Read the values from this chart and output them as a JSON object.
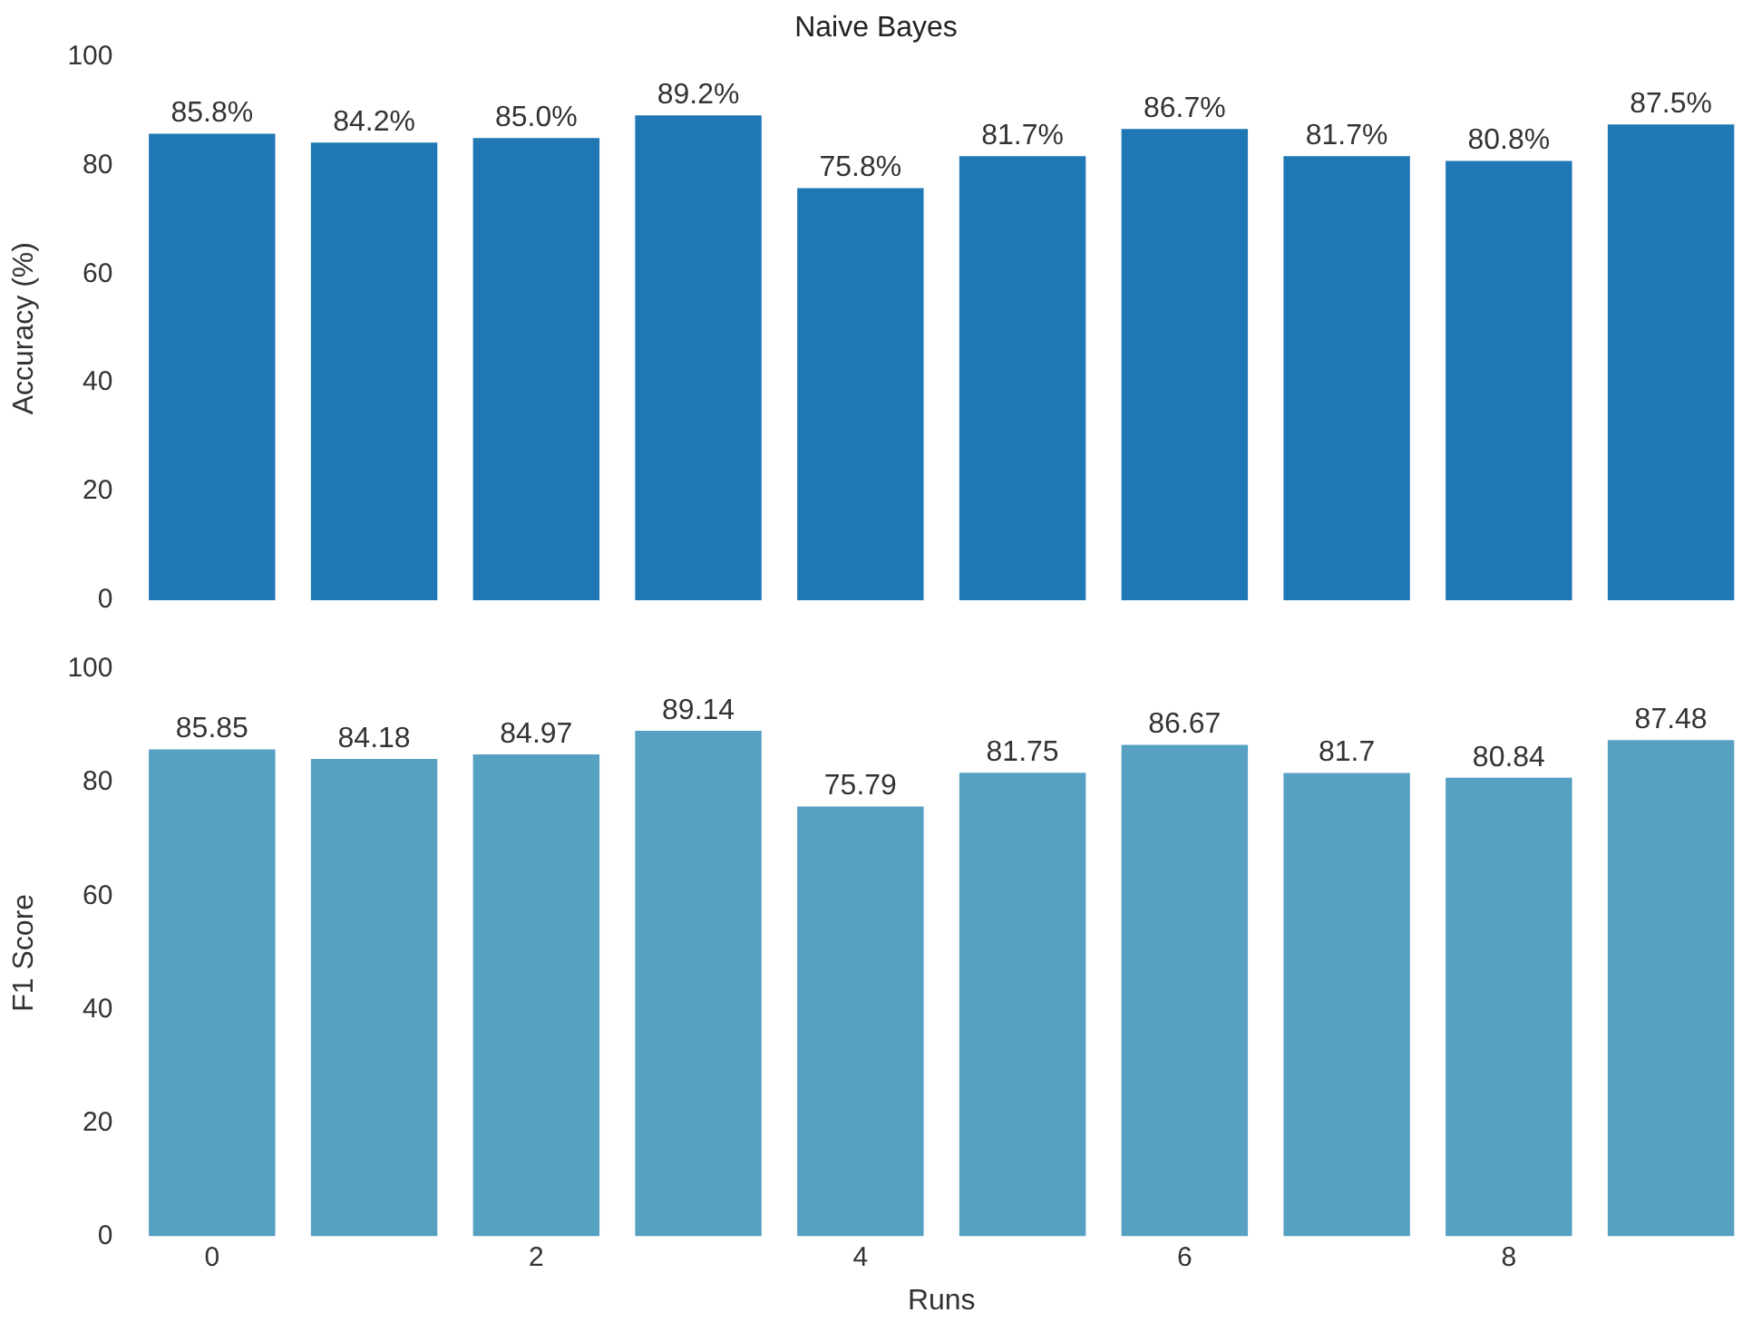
{
  "chart_data": [
    {
      "type": "bar",
      "title": "Naive Bayes",
      "ylabel": "Accuracy (%)",
      "categories": [
        "0",
        null,
        "2",
        null,
        "4",
        null,
        "6",
        null,
        "8",
        null
      ],
      "ylim": [
        0,
        100
      ],
      "yticks": [
        0,
        20,
        40,
        60,
        80,
        100
      ],
      "tick_labels": "y",
      "grid": false,
      "legend": false,
      "color": "#1f77b4",
      "values": [
        85.8,
        84.2,
        85.0,
        89.2,
        75.8,
        81.7,
        86.7,
        81.7,
        80.8,
        87.5
      ],
      "value_labels": [
        "85.8%",
        "84.2%",
        "85.0%",
        "89.2%",
        "75.8%",
        "81.7%",
        "86.7%",
        "81.7%",
        "80.8%",
        "87.5%"
      ]
    },
    {
      "type": "bar",
      "xlabel": "Runs",
      "ylabel": "F1 Score",
      "categories": [
        "0",
        null,
        "2",
        null,
        "4",
        null,
        "6",
        null,
        "8",
        null
      ],
      "ylim": [
        0,
        100
      ],
      "yticks": [
        0,
        20,
        40,
        60,
        80,
        100
      ],
      "grid": false,
      "legend": false,
      "color": "#56a0c2",
      "values": [
        85.85,
        84.18,
        84.97,
        89.14,
        75.79,
        81.75,
        86.67,
        81.7,
        80.84,
        87.48
      ],
      "data_labels": true
    }
  ]
}
